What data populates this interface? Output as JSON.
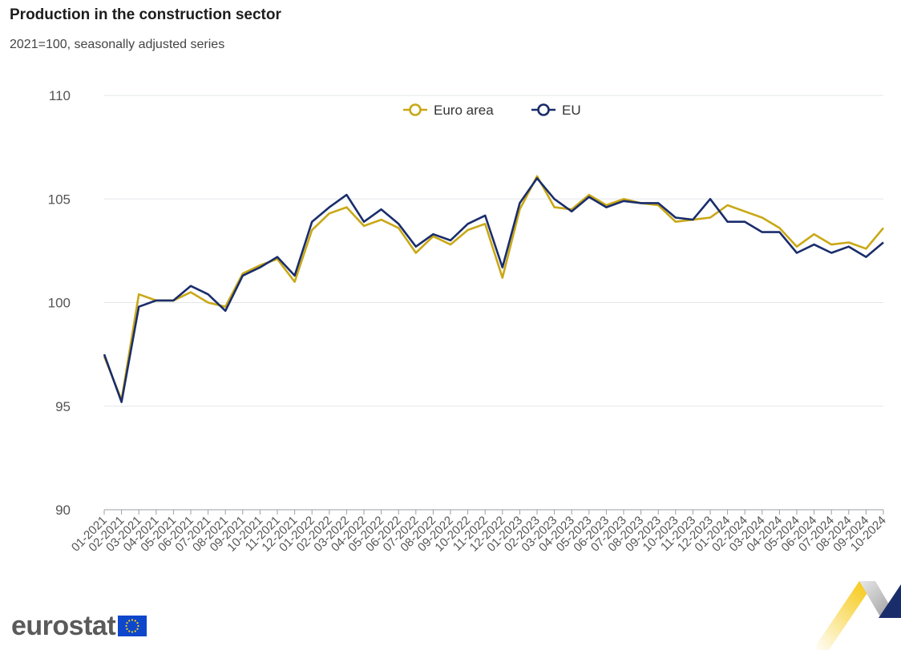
{
  "header": {
    "title": "Production in the construction sector",
    "subtitle": "2021=100, seasonally adjusted series"
  },
  "footer": {
    "logo_text": "eurostat"
  },
  "colors": {
    "euro_area": "#c9a816",
    "eu": "#1a2d6b",
    "grid": "#e3e6ea",
    "axis": "#9aa0a6"
  },
  "chart_data": {
    "type": "line",
    "title": "Production in the construction sector",
    "subtitle": "2021=100, seasonally adjusted series",
    "ylim": [
      90,
      110
    ],
    "yticks": [
      90,
      95,
      100,
      105,
      110
    ],
    "grid": true,
    "legend": "top-center",
    "categories": [
      "01-2021",
      "02-2021",
      "03-2021",
      "04-2021",
      "05-2021",
      "06-2021",
      "07-2021",
      "08-2021",
      "09-2021",
      "10-2021",
      "11-2021",
      "12-2021",
      "01-2022",
      "02-2022",
      "03-2022",
      "04-2022",
      "05-2022",
      "06-2022",
      "07-2022",
      "08-2022",
      "09-2022",
      "10-2022",
      "11-2022",
      "12-2022",
      "01-2023",
      "02-2023",
      "03-2023",
      "04-2023",
      "05-2023",
      "06-2023",
      "07-2023",
      "08-2023",
      "09-2023",
      "10-2023",
      "11-2023",
      "12-2023",
      "01-2024",
      "02-2024",
      "03-2024",
      "04-2024",
      "05-2024",
      "06-2024",
      "07-2024",
      "08-2024",
      "09-2024",
      "10-2024"
    ],
    "series": [
      {
        "name": "Euro area",
        "color": "#c9a816",
        "values": [
          97.4,
          95.3,
          100.4,
          100.1,
          100.1,
          100.5,
          100.0,
          99.8,
          101.4,
          101.8,
          102.1,
          101.0,
          103.5,
          104.3,
          104.6,
          103.7,
          104.0,
          103.6,
          102.4,
          103.2,
          102.8,
          103.5,
          103.8,
          101.2,
          104.5,
          106.1,
          104.6,
          104.5,
          105.2,
          104.7,
          105.0,
          104.8,
          104.7,
          103.9,
          104.0,
          104.1,
          104.7,
          104.4,
          104.1,
          103.6,
          102.7,
          103.3,
          102.8,
          102.9,
          102.6,
          103.6
        ]
      },
      {
        "name": "EU",
        "color": "#1a2d6b",
        "values": [
          97.5,
          95.2,
          99.8,
          100.1,
          100.1,
          100.8,
          100.4,
          99.6,
          101.3,
          101.7,
          102.2,
          101.3,
          103.9,
          104.6,
          105.2,
          103.9,
          104.5,
          103.8,
          102.7,
          103.3,
          103.0,
          103.8,
          104.2,
          101.7,
          104.8,
          106.0,
          105.0,
          104.4,
          105.1,
          104.6,
          104.9,
          104.8,
          104.8,
          104.1,
          104.0,
          105.0,
          103.9,
          103.9,
          103.4,
          103.4,
          102.4,
          102.8,
          102.4,
          102.7,
          102.2,
          102.9
        ]
      }
    ]
  }
}
